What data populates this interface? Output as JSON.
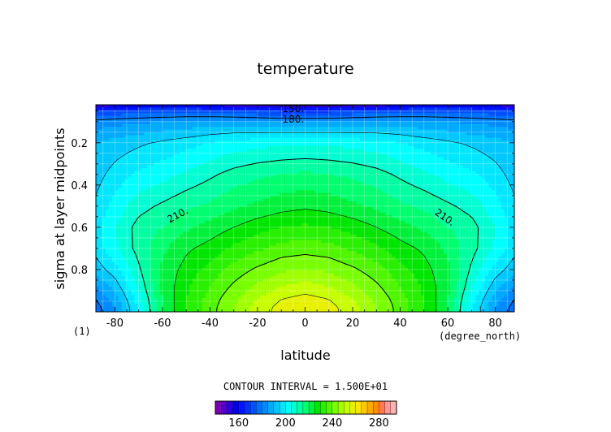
{
  "chart_data": {
    "type": "heatmap",
    "title": "temperature",
    "xlabel": "latitude",
    "ylabel": "sigma at layer midpoints",
    "x_units": "(degree_north)",
    "y_units": "(1)",
    "xlim": [
      -88,
      88
    ],
    "ylim": [
      0.02,
      1.0
    ],
    "y_inverted": true,
    "x_ticks": [
      -80,
      -60,
      -40,
      -20,
      0,
      20,
      40,
      60,
      80
    ],
    "x_tick_labels": [
      "-80",
      "-60",
      "-40",
      "-20",
      "0",
      "20",
      "40",
      "60",
      "80"
    ],
    "y_ticks": [
      0.2,
      0.4,
      0.6,
      0.8
    ],
    "y_tick_labels": [
      "0.2",
      "0.4",
      "0.6",
      "0.8"
    ],
    "grid": true,
    "contour_interval_text": "CONTOUR INTERVAL = 1.500E+01",
    "contour_labels": [
      {
        "text": "150.",
        "x": -5,
        "y": 0.04
      },
      {
        "text": "180.",
        "x": -5,
        "y": 0.09
      },
      {
        "text": "210.",
        "x": -53,
        "y": 0.54
      },
      {
        "text": "210.",
        "x": 58,
        "y": 0.55
      }
    ],
    "colorbar": {
      "levels": [
        140,
        145,
        150,
        155,
        160,
        165,
        170,
        175,
        180,
        185,
        190,
        195,
        200,
        205,
        210,
        215,
        220,
        225,
        230,
        235,
        240,
        245,
        250,
        255,
        260,
        265,
        270,
        275,
        280,
        285,
        290,
        295
      ],
      "tick_values": [
        160,
        200,
        240,
        280
      ],
      "tick_labels": [
        "160",
        "200",
        "240",
        "280"
      ],
      "colors": [
        "#7a00b0",
        "#5000c8",
        "#2800e0",
        "#0000f0",
        "#0014ff",
        "#0032ff",
        "#0050ff",
        "#0070ff",
        "#008cff",
        "#00aaff",
        "#00c8ff",
        "#00e6ff",
        "#00ffff",
        "#00ffd2",
        "#00ffa0",
        "#00ff6e",
        "#00f03c",
        "#00e600",
        "#28f000",
        "#50f500",
        "#78ff00",
        "#a0ff00",
        "#c8ff00",
        "#e6f000",
        "#ffe600",
        "#ffc800",
        "#ffaa00",
        "#ff8c00",
        "#ff7850",
        "#ff9696",
        "#ffb4b4"
      ]
    },
    "field": [
      {
        "x": -88,
        "y": [
          0.02,
          0.05,
          0.1,
          0.2,
          0.35,
          0.5,
          0.6,
          0.7,
          0.8,
          0.88,
          0.94,
          0.98
        ],
        "v": [
          150,
          170,
          182,
          190,
          193,
          196,
          198,
          197,
          192,
          185,
          180,
          178
        ]
      },
      {
        "x": -80,
        "y": [
          0.02,
          0.05,
          0.1,
          0.2,
          0.35,
          0.5,
          0.6,
          0.7,
          0.8,
          0.88,
          0.94,
          0.98
        ],
        "v": [
          151,
          171,
          183,
          192,
          197,
          202,
          205,
          204,
          198,
          192,
          187,
          185
        ]
      },
      {
        "x": -70,
        "y": [
          0.02,
          0.05,
          0.1,
          0.2,
          0.35,
          0.5,
          0.6,
          0.7,
          0.8,
          0.88,
          0.94,
          0.98
        ],
        "v": [
          152,
          172,
          184,
          194,
          201,
          208,
          212,
          212,
          209,
          206,
          203,
          201
        ]
      },
      {
        "x": -60,
        "y": [
          0.02,
          0.05,
          0.1,
          0.2,
          0.35,
          0.5,
          0.6,
          0.7,
          0.8,
          0.88,
          0.94,
          0.98
        ],
        "v": [
          152,
          173,
          185,
          196,
          203,
          211,
          215,
          219,
          221,
          221,
          220,
          220
        ]
      },
      {
        "x": -50,
        "y": [
          0.02,
          0.05,
          0.1,
          0.2,
          0.35,
          0.5,
          0.6,
          0.7,
          0.8,
          0.88,
          0.94,
          0.98
        ],
        "v": [
          152,
          173,
          186,
          198,
          206,
          214,
          219,
          224,
          227,
          229,
          230,
          230
        ]
      },
      {
        "x": -40,
        "y": [
          0.02,
          0.05,
          0.1,
          0.2,
          0.35,
          0.5,
          0.6,
          0.7,
          0.8,
          0.88,
          0.94,
          0.98
        ],
        "v": [
          151,
          172,
          187,
          200,
          209,
          216,
          222,
          227,
          232,
          235,
          237,
          238
        ]
      },
      {
        "x": -30,
        "y": [
          0.02,
          0.05,
          0.1,
          0.2,
          0.35,
          0.5,
          0.6,
          0.7,
          0.8,
          0.88,
          0.94,
          0.98
        ],
        "v": [
          150,
          171,
          187,
          202,
          212,
          219,
          225,
          231,
          237,
          241,
          244,
          245
        ]
      },
      {
        "x": -20,
        "y": [
          0.02,
          0.05,
          0.1,
          0.2,
          0.35,
          0.5,
          0.6,
          0.7,
          0.8,
          0.88,
          0.94,
          0.98
        ],
        "v": [
          149,
          170,
          186,
          203,
          214,
          221,
          228,
          234,
          241,
          246,
          250,
          252
        ]
      },
      {
        "x": -10,
        "y": [
          0.02,
          0.05,
          0.1,
          0.2,
          0.35,
          0.5,
          0.6,
          0.7,
          0.8,
          0.88,
          0.94,
          0.98
        ],
        "v": [
          148,
          169,
          185,
          204,
          215,
          223,
          230,
          237,
          244,
          250,
          255,
          257
        ]
      },
      {
        "x": 0,
        "y": [
          0.02,
          0.05,
          0.1,
          0.2,
          0.35,
          0.5,
          0.6,
          0.7,
          0.8,
          0.88,
          0.94,
          0.98
        ],
        "v": [
          148,
          169,
          185,
          204,
          216,
          224,
          231,
          238,
          245,
          252,
          257,
          259
        ]
      },
      {
        "x": 10,
        "y": [
          0.02,
          0.05,
          0.1,
          0.2,
          0.35,
          0.5,
          0.6,
          0.7,
          0.8,
          0.88,
          0.94,
          0.98
        ],
        "v": [
          148,
          169,
          185,
          204,
          215,
          223,
          230,
          237,
          244,
          250,
          255,
          257
        ]
      },
      {
        "x": 20,
        "y": [
          0.02,
          0.05,
          0.1,
          0.2,
          0.35,
          0.5,
          0.6,
          0.7,
          0.8,
          0.88,
          0.94,
          0.98
        ],
        "v": [
          149,
          170,
          186,
          203,
          214,
          221,
          228,
          234,
          241,
          246,
          250,
          252
        ]
      },
      {
        "x": 30,
        "y": [
          0.02,
          0.05,
          0.1,
          0.2,
          0.35,
          0.5,
          0.6,
          0.7,
          0.8,
          0.88,
          0.94,
          0.98
        ],
        "v": [
          150,
          171,
          187,
          202,
          212,
          219,
          225,
          231,
          237,
          241,
          244,
          245
        ]
      },
      {
        "x": 40,
        "y": [
          0.02,
          0.05,
          0.1,
          0.2,
          0.35,
          0.5,
          0.6,
          0.7,
          0.8,
          0.88,
          0.94,
          0.98
        ],
        "v": [
          151,
          172,
          187,
          200,
          209,
          216,
          222,
          227,
          232,
          235,
          237,
          238
        ]
      },
      {
        "x": 50,
        "y": [
          0.02,
          0.05,
          0.1,
          0.2,
          0.35,
          0.5,
          0.6,
          0.7,
          0.8,
          0.88,
          0.94,
          0.98
        ],
        "v": [
          152,
          173,
          186,
          198,
          206,
          214,
          219,
          224,
          227,
          229,
          230,
          230
        ]
      },
      {
        "x": 60,
        "y": [
          0.02,
          0.05,
          0.1,
          0.2,
          0.35,
          0.5,
          0.6,
          0.7,
          0.8,
          0.88,
          0.94,
          0.98
        ],
        "v": [
          152,
          173,
          185,
          196,
          203,
          211,
          215,
          219,
          221,
          221,
          220,
          220
        ]
      },
      {
        "x": 70,
        "y": [
          0.02,
          0.05,
          0.1,
          0.2,
          0.35,
          0.5,
          0.6,
          0.7,
          0.8,
          0.88,
          0.94,
          0.98
        ],
        "v": [
          152,
          172,
          184,
          194,
          201,
          208,
          212,
          212,
          209,
          206,
          203,
          201
        ]
      },
      {
        "x": 80,
        "y": [
          0.02,
          0.05,
          0.1,
          0.2,
          0.35,
          0.5,
          0.6,
          0.7,
          0.8,
          0.88,
          0.94,
          0.98
        ],
        "v": [
          151,
          171,
          183,
          192,
          197,
          202,
          205,
          204,
          198,
          192,
          187,
          185
        ]
      },
      {
        "x": 88,
        "y": [
          0.02,
          0.05,
          0.1,
          0.2,
          0.35,
          0.5,
          0.6,
          0.7,
          0.8,
          0.88,
          0.94,
          0.98
        ],
        "v": [
          150,
          170,
          182,
          190,
          193,
          196,
          198,
          197,
          192,
          185,
          180,
          178
        ]
      }
    ],
    "contour_lines": [
      150,
      180,
      195,
      210,
      225,
      240,
      255
    ]
  }
}
